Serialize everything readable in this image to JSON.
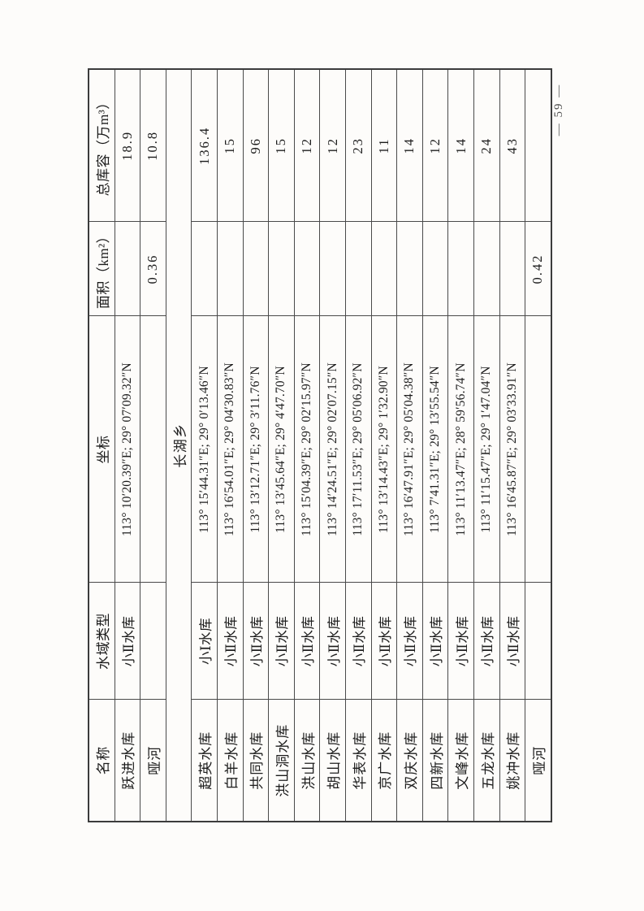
{
  "page": {
    "number": "— 59 —"
  },
  "table": {
    "headers": [
      "名称",
      "水域类型",
      "坐标",
      "面积（km²）",
      "总库容（万m³）"
    ],
    "section_divider": "长湖乡",
    "rows": [
      {
        "name": "跃进水库",
        "water_type": "小Ⅱ水库",
        "coordinates": "113° 10′20.39″E; 29° 07′09.32″N",
        "area_km2": "",
        "capacity_10k_m3": "18.9"
      },
      {
        "name": "哑河",
        "water_type": "",
        "coordinates": "",
        "area_km2": "0.36",
        "capacity_10k_m3": "10.8"
      },
      {
        "divider": "长湖乡"
      },
      {
        "name": "超英水库",
        "water_type": "小Ⅰ水库",
        "coordinates": "113° 15′44.31″E; 29° 0′13.46″N",
        "area_km2": "",
        "capacity_10k_m3": "136.4"
      },
      {
        "name": "白羊水库",
        "water_type": "小Ⅱ水库",
        "coordinates": "113° 16′54.01″E; 29° 04′30.83″N",
        "area_km2": "",
        "capacity_10k_m3": "15"
      },
      {
        "name": "共同水库",
        "water_type": "小Ⅱ水库",
        "coordinates": "113° 13′12.71″E; 29° 3′11.76″N",
        "area_km2": "",
        "capacity_10k_m3": "96"
      },
      {
        "name": "洪山洞水库",
        "water_type": "小Ⅱ水库",
        "coordinates": "113° 13′45.64″E; 29° 4′47.70″N",
        "area_km2": "",
        "capacity_10k_m3": "15"
      },
      {
        "name": "洪山水库",
        "water_type": "小Ⅱ水库",
        "coordinates": "113° 15′04.39″E; 29° 02′15.97″N",
        "area_km2": "",
        "capacity_10k_m3": "12"
      },
      {
        "name": "胡山水库",
        "water_type": "小Ⅱ水库",
        "coordinates": "113° 14′24.51″E; 29° 02′07.15″N",
        "area_km2": "",
        "capacity_10k_m3": "12"
      },
      {
        "name": "华表水库",
        "water_type": "小Ⅱ水库",
        "coordinates": "113° 17′11.53″E; 29° 05′06.92″N",
        "area_km2": "",
        "capacity_10k_m3": "23"
      },
      {
        "name": "京广水库",
        "water_type": "小Ⅱ水库",
        "coordinates": "113° 13′14.43″E; 29° 1′32.90″N",
        "area_km2": "",
        "capacity_10k_m3": "11"
      },
      {
        "name": "双庆水库",
        "water_type": "小Ⅱ水库",
        "coordinates": "113° 16′47.91″E; 29° 05′04.38″N",
        "area_km2": "",
        "capacity_10k_m3": "14"
      },
      {
        "name": "四新水库",
        "water_type": "小Ⅱ水库",
        "coordinates": "113° 7′41.31″E; 29° 13′55.54″N",
        "area_km2": "",
        "capacity_10k_m3": "12"
      },
      {
        "name": "文峰水库",
        "water_type": "小Ⅱ水库",
        "coordinates": "113° 11′13.47″E; 28° 59′56.74″N",
        "area_km2": "",
        "capacity_10k_m3": "14"
      },
      {
        "name": "五龙水库",
        "water_type": "小Ⅱ水库",
        "coordinates": "113° 11′15.47″E; 29° 1′47.04″N",
        "area_km2": "",
        "capacity_10k_m3": "24"
      },
      {
        "name": "姚冲水库",
        "water_type": "小Ⅱ水库",
        "coordinates": "113° 16′45.87″E; 29° 03′33.91″N",
        "area_km2": "",
        "capacity_10k_m3": "43"
      },
      {
        "name": "哑河",
        "water_type": "",
        "coordinates": "",
        "area_km2": "0.42",
        "capacity_10k_m3": ""
      }
    ]
  }
}
